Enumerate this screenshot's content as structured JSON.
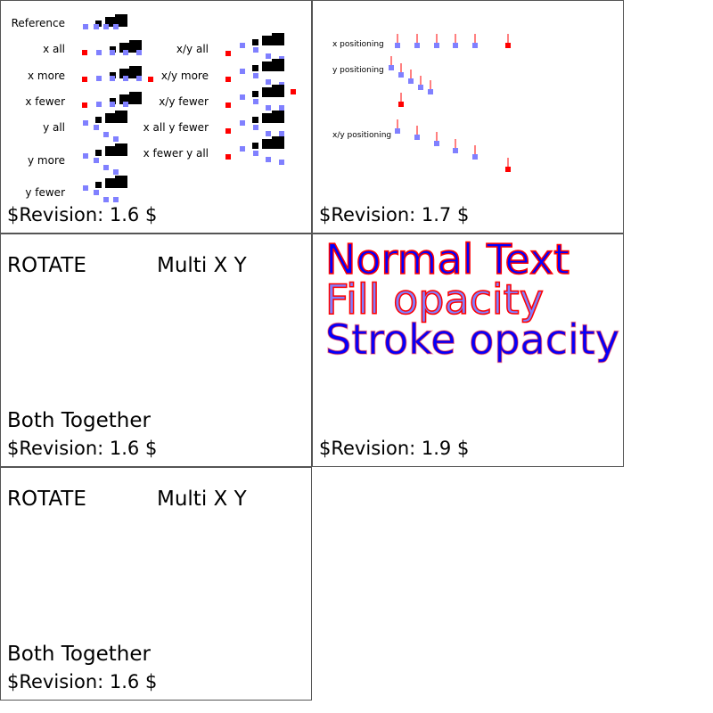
{
  "panels": [
    {
      "revision": "$Revision: 1.6 $",
      "labels_left": [
        "Reference",
        "x all",
        "x more",
        "x fewer",
        "y all",
        "y more",
        "y fewer"
      ],
      "labels_right": [
        "x/y all",
        "x/y more",
        "x/y fewer",
        "x all y fewer",
        "x fewer y all"
      ]
    },
    {
      "revision": "$Revision: 1.7 $",
      "labels": [
        "x positioning",
        "y positioning",
        "x/y positioning"
      ]
    },
    {
      "revision": "$Revision: 1.6 $",
      "rotate": "ROTATE",
      "multi": "Multi X Y",
      "both": "Both Together"
    },
    {
      "revision": "$Revision: 1.9 $",
      "lines": [
        "Normal Text",
        "Fill opacity",
        "Stroke opacity"
      ]
    },
    {
      "revision": "$Revision: 1.6 $",
      "rotate": "ROTATE",
      "multi": "Multi X Y",
      "both": "Both Together"
    }
  ],
  "colors": {
    "blue": "#0000ff",
    "light_blue": "#8080ff",
    "red": "#ff0000",
    "black": "#000000"
  }
}
